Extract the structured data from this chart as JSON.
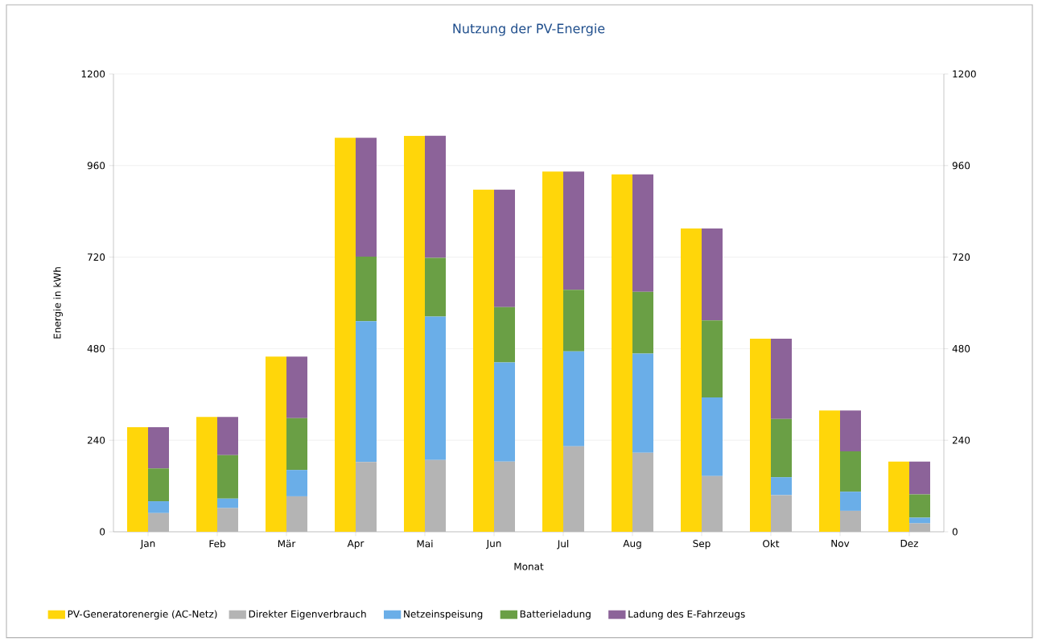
{
  "chart_data": [
    {
      "type": "bar",
      "title": "Nutzung der PV-Energie",
      "xlabel": "Monat",
      "ylabel": "Energie in kWh",
      "categories": [
        "Jan",
        "Feb",
        "Mär",
        "Apr",
        "Mai",
        "Jun",
        "Jul",
        "Aug",
        "Sep",
        "Okt",
        "Nov",
        "Dez"
      ],
      "series": [
        {
          "name": "PV-Generatorenergie (AC-Netz)",
          "color": "#ffd60a",
          "values": [
            274,
            301,
            459,
            1033,
            1038,
            897,
            944,
            937,
            795,
            506,
            318,
            184
          ]
        }
      ],
      "ylim": [
        0,
        1200
      ],
      "yticks": [
        0,
        240,
        480,
        720,
        960,
        1200
      ],
      "grid": "y",
      "legend": "bottom"
    },
    {
      "type": "bar",
      "stacked": true,
      "categories": [
        null,
        null,
        null,
        null,
        null,
        null,
        null,
        null,
        null,
        null,
        null,
        null
      ],
      "series": [
        {
          "name": "Direkter Eigenverbrauch",
          "color": "#b4b4b4",
          "values": [
            49,
            62,
            93,
            183,
            188,
            184,
            224,
            207,
            146,
            96,
            55,
            22
          ]
        },
        {
          "name": "Netzeinspeisung",
          "color": "#6aaee8",
          "values": [
            31,
            25,
            69,
            369,
            376,
            260,
            249,
            260,
            206,
            47,
            50,
            15
          ]
        },
        {
          "name": "Batterieladung",
          "color": "#6a9f45",
          "values": [
            86,
            114,
            136,
            169,
            154,
            145,
            161,
            162,
            202,
            153,
            106,
            61
          ]
        },
        {
          "name": "Ladung des E-Fahrzeugs",
          "color": "#8c6399",
          "values": [
            108,
            100,
            161,
            312,
            320,
            308,
            310,
            308,
            241,
            210,
            107,
            86
          ]
        }
      ],
      "ylim": [
        0,
        1200
      ],
      "yticks": [
        0,
        240,
        480,
        720,
        960,
        1200
      ],
      "tick_labels": "y",
      "legend": "bottom"
    }
  ]
}
